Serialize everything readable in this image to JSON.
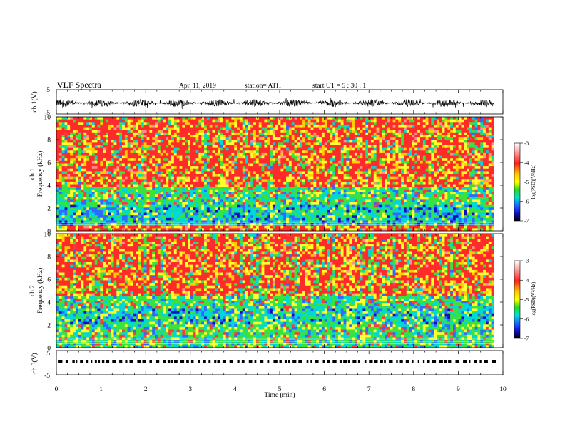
{
  "header": {
    "title": "VLF  Spectra",
    "date": "Apr. 11, 2019",
    "station": "station= ATH",
    "start_time": "start  UT  =     5  : 30 : 1"
  },
  "chart_data": [
    {
      "type": "line",
      "name": "ch1-waveform",
      "ylabel": "ch.1(V)",
      "xlim": [
        0,
        10
      ],
      "ylim": [
        -5,
        5
      ],
      "y_ticks": [
        5,
        -5
      ],
      "description_level": -0.5,
      "amplitude": 1.6
    },
    {
      "type": "heatmap",
      "name": "ch1-spectrogram",
      "ylabel": "Frequency  (kHz)",
      "channel_label": "ch.1",
      "x_range_min": [
        0,
        9.8
      ],
      "ylim": [
        0,
        10
      ],
      "y_ticks": [
        0,
        2,
        4,
        6,
        8,
        10
      ],
      "bands_khz": [
        {
          "from": 0,
          "to": 0.5,
          "level": "high"
        },
        {
          "from": 0.5,
          "to": 2.2,
          "level": "low"
        },
        {
          "from": 2.2,
          "to": 3.8,
          "level": "medium"
        },
        {
          "from": 3.8,
          "to": 10,
          "level": "high"
        }
      ],
      "colorbar": {
        "label": "log(PSD)(V²/Hz)",
        "range": [
          -7,
          -3
        ],
        "ticks": [
          "-3",
          "-4",
          "-5",
          "-6",
          "-7"
        ]
      }
    },
    {
      "type": "heatmap",
      "name": "ch2-spectrogram",
      "ylabel": "Frequency  (kHz)",
      "channel_label": "ch.2",
      "x_range_min": [
        0,
        9.8
      ],
      "ylim": [
        0,
        10
      ],
      "y_ticks": [
        0,
        2,
        4,
        6,
        8,
        10
      ],
      "bands_khz": [
        {
          "from": 0,
          "to": 2,
          "level": "medium"
        },
        {
          "from": 2,
          "to": 3.3,
          "level": "low"
        },
        {
          "from": 3.3,
          "to": 4.5,
          "level": "medium"
        },
        {
          "from": 4.5,
          "to": 10,
          "level": "high"
        }
      ],
      "colorbar": {
        "label": "log(PSD)(V²/Hz)",
        "range": [
          -7,
          -3
        ],
        "ticks": [
          "-3",
          "-4",
          "-5",
          "-6",
          "-7"
        ]
      }
    },
    {
      "type": "scatter",
      "name": "ch3-timing",
      "ylabel": "ch.3(V)",
      "xlim": [
        0,
        10
      ],
      "ylim": [
        -5,
        5
      ],
      "y_ticks": [
        5,
        -5
      ],
      "level": 0.5
    }
  ],
  "x_axis": {
    "label": "Time  (min)",
    "ticks": [
      "0",
      "1",
      "2",
      "3",
      "4",
      "5",
      "6",
      "7",
      "8",
      "9",
      "10"
    ],
    "range": [
      0,
      10
    ]
  },
  "colors": {
    "colormap": [
      "#ffffff",
      "#ff2b2b",
      "#e8e800",
      "#39e639",
      "#00e0e0",
      "#2066ff",
      "#000000"
    ]
  }
}
